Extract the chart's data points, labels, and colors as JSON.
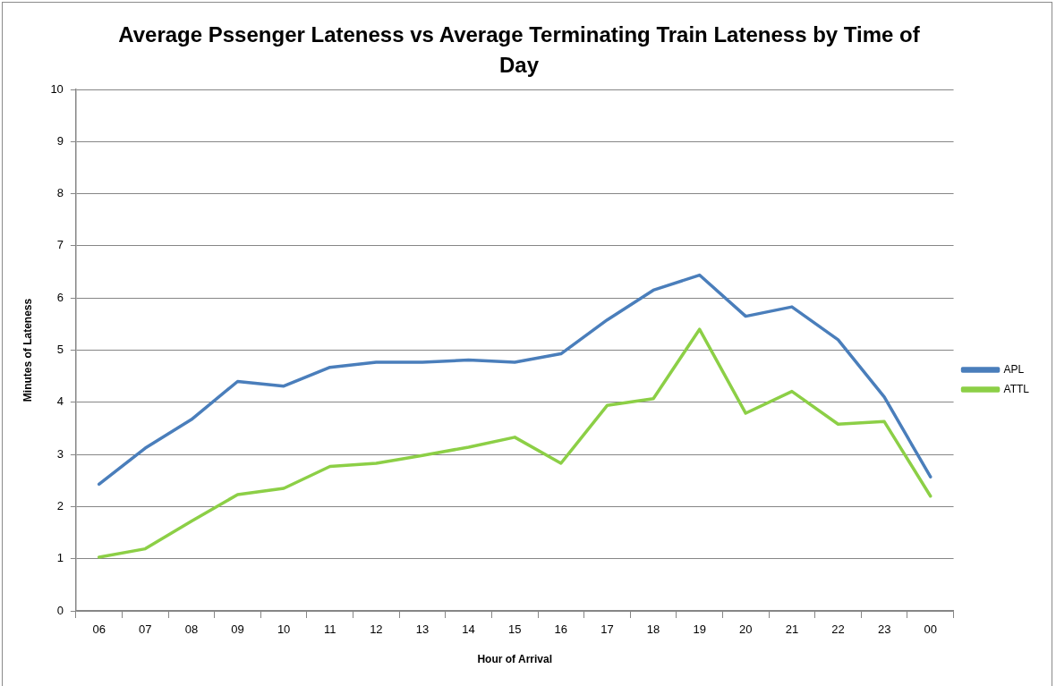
{
  "chart_data": {
    "type": "line",
    "title": "Average Pssenger Lateness vs Average Terminating Train Lateness by Time of Day",
    "xlabel": "Hour of Arrival",
    "ylabel": "Minutes of Lateness",
    "categories": [
      "06",
      "07",
      "08",
      "09",
      "10",
      "11",
      "12",
      "13",
      "14",
      "15",
      "16",
      "17",
      "18",
      "19",
      "20",
      "21",
      "22",
      "23",
      "00"
    ],
    "series": [
      {
        "name": "APL",
        "color": "#4a7ebb",
        "values": [
          2.43,
          3.12,
          3.67,
          4.4,
          4.31,
          4.67,
          4.77,
          4.77,
          4.81,
          4.77,
          4.93,
          5.58,
          6.15,
          6.44,
          5.65,
          5.83,
          5.2,
          4.1,
          2.57
        ]
      },
      {
        "name": "ATTL",
        "color": "#8ccf46",
        "values": [
          1.03,
          1.19,
          1.72,
          2.23,
          2.35,
          2.77,
          2.83,
          2.98,
          3.14,
          3.33,
          2.83,
          3.94,
          4.07,
          5.4,
          3.79,
          4.21,
          3.58,
          3.63,
          2.2
        ]
      }
    ],
    "ylim": [
      0,
      10
    ],
    "yticks": [
      0,
      1,
      2,
      3,
      4,
      5,
      6,
      7,
      8,
      9,
      10
    ],
    "grid": "y",
    "legend": "right",
    "marker": "none",
    "line_style": "solid"
  }
}
